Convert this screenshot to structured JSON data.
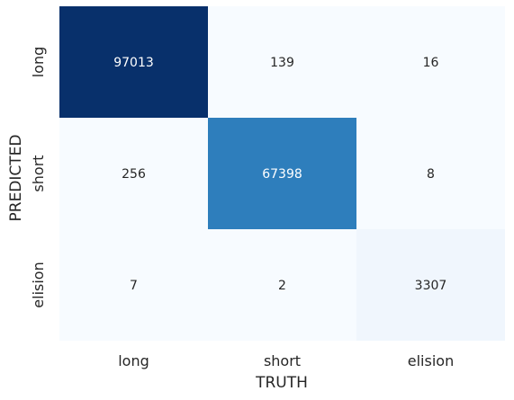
{
  "chart_data": {
    "type": "heatmap",
    "title": "",
    "xlabel": "TRUTH",
    "ylabel": "PREDICTED",
    "x_categories": [
      "long",
      "short",
      "elision"
    ],
    "y_categories": [
      "long",
      "short",
      "elision"
    ],
    "values": [
      [
        97013,
        139,
        16
      ],
      [
        256,
        67398,
        8
      ],
      [
        7,
        2,
        3307
      ]
    ],
    "colormap": "Blues",
    "colorbar": false,
    "cell_colors": [
      [
        "#08306b",
        "#f7fbff",
        "#f7fbff"
      ],
      [
        "#f7fbff",
        "#2e7ebc",
        "#f7fbff"
      ],
      [
        "#f7fbff",
        "#f7fbff",
        "#f0f6fd"
      ]
    ],
    "text_colors": {
      "dark": "#ffffff",
      "light": "#262626"
    }
  }
}
